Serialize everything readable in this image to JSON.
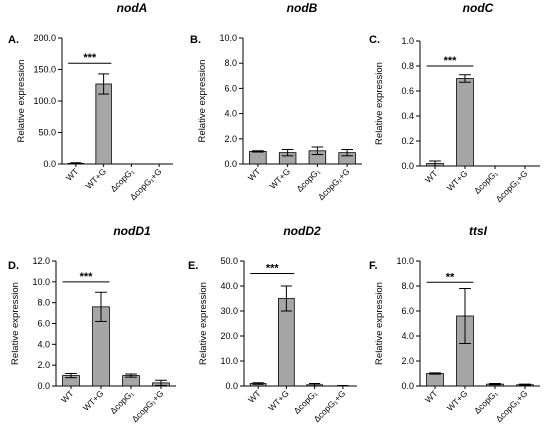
{
  "categories": [
    "WT",
    "WT+G",
    "ΔcopG₁",
    "ΔcopG₁+G"
  ],
  "chart_data": [
    {
      "type": "bar",
      "panel": "A.",
      "title": "nodA",
      "ylabel": "Relative expression",
      "ylim": [
        0,
        200
      ],
      "yticks": [
        "0.0",
        "50.0",
        "100.0",
        "150.0",
        "200.0"
      ],
      "categories": [
        "WT",
        "WT+G",
        "ΔcopG₁",
        "ΔcopG₁+G"
      ],
      "values": [
        1,
        127,
        0,
        0
      ],
      "errors": [
        1,
        16,
        0,
        0
      ],
      "significance": {
        "label": "***",
        "from": 0,
        "to": 1,
        "y": 160
      }
    },
    {
      "type": "bar",
      "panel": "B.",
      "title": "nodB",
      "ylabel": "Relative expression",
      "ylim": [
        0,
        10
      ],
      "yticks": [
        "0.0",
        "2.0",
        "4.0",
        "6.0",
        "8.0",
        "10.0"
      ],
      "categories": [
        "WT",
        "WT+G",
        "ΔcopG₁",
        "ΔcopG₁+G"
      ],
      "values": [
        1.0,
        0.9,
        1.05,
        0.9
      ],
      "errors": [
        0.05,
        0.25,
        0.3,
        0.25
      ]
    },
    {
      "type": "bar",
      "panel": "C.",
      "title": "nodC",
      "ylabel": "Relative expression",
      "ylim": [
        0,
        1.0
      ],
      "yticks": [
        "0.0",
        "0.2",
        "0.4",
        "0.6",
        "0.8",
        "1.0"
      ],
      "categories": [
        "WT",
        "WT+G",
        "ΔcopG₁",
        "ΔcopG₁+G"
      ],
      "values": [
        0.02,
        0.7,
        0,
        0
      ],
      "errors": [
        0.02,
        0.03,
        0,
        0
      ],
      "significance": {
        "label": "***",
        "from": 0,
        "to": 1,
        "y": 0.8
      }
    },
    {
      "type": "bar",
      "panel": "D.",
      "title": "nodD1",
      "ylabel": "Relative expression",
      "ylim": [
        0,
        12
      ],
      "yticks": [
        "0.0",
        "2.0",
        "4.0",
        "6.0",
        "8.0",
        "10.0",
        "12.0"
      ],
      "categories": [
        "WT",
        "WT+G",
        "ΔcopG₁",
        "ΔcopG₁+G"
      ],
      "values": [
        1.0,
        7.6,
        1.0,
        0.3
      ],
      "errors": [
        0.2,
        1.4,
        0.15,
        0.25
      ],
      "significance": {
        "label": "***",
        "from": 0,
        "to": 1,
        "y": 10
      }
    },
    {
      "type": "bar",
      "panel": "E.",
      "title": "nodD2",
      "ylabel": "Relative expression",
      "ylim": [
        0,
        50
      ],
      "yticks": [
        "0.0",
        "10.0",
        "20.0",
        "30.0",
        "40.0",
        "50.0"
      ],
      "categories": [
        "WT",
        "WT+G",
        "ΔcopG₁",
        "ΔcopG₁+G"
      ],
      "values": [
        1.0,
        35,
        0.5,
        0.1
      ],
      "errors": [
        0.3,
        5,
        0.5,
        0.1
      ],
      "significance": {
        "label": "***",
        "from": 0,
        "to": 1,
        "y": 45
      }
    },
    {
      "type": "bar",
      "panel": "F.",
      "title": "ttsI",
      "ylabel": "Relative expression",
      "ylim": [
        0,
        10
      ],
      "yticks": [
        "0.0",
        "2.0",
        "4.0",
        "6.0",
        "8.0",
        "10.0"
      ],
      "categories": [
        "WT",
        "WT+G",
        "ΔcopG₁",
        "ΔcopG₁+G"
      ],
      "values": [
        1.0,
        5.6,
        0.15,
        0.1
      ],
      "errors": [
        0.05,
        2.2,
        0.05,
        0.05
      ],
      "significance": {
        "label": "**",
        "from": 0,
        "to": 1,
        "y": 8.3
      }
    }
  ]
}
